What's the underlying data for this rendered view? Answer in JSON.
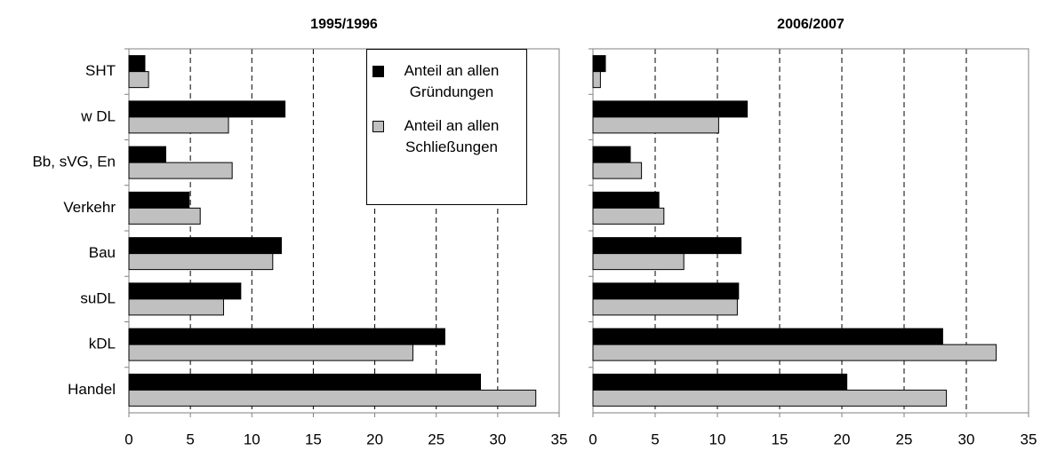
{
  "chart_data": [
    {
      "type": "bar",
      "orientation": "horizontal",
      "title": "1995/1996",
      "categories": [
        "SHT",
        "w DL",
        "Bb, sVG, En",
        "Verkehr",
        "Bau",
        "suDL",
        "kDL",
        "Handel"
      ],
      "series": [
        {
          "name": "Anteil an allen Gründungen",
          "color": "#000000",
          "values": [
            1.3,
            12.7,
            3.0,
            4.9,
            12.4,
            9.1,
            25.7,
            28.6
          ]
        },
        {
          "name": "Anteil an allen Schließungen",
          "color": "#c0c0c0",
          "values": [
            1.6,
            8.1,
            8.4,
            5.8,
            11.7,
            7.7,
            23.1,
            33.1
          ]
        }
      ],
      "xlim": [
        0,
        35
      ],
      "xticks": [
        0,
        5,
        10,
        15,
        20,
        25,
        30,
        35
      ],
      "grid": true,
      "legend": "top-right"
    },
    {
      "type": "bar",
      "orientation": "horizontal",
      "title": "2006/2007",
      "categories": [
        "SHT",
        "w DL",
        "Bb, sVG, En",
        "Verkehr",
        "Bau",
        "suDL",
        "kDL",
        "Handel"
      ],
      "series": [
        {
          "name": "Anteil an allen Gründungen",
          "color": "#000000",
          "values": [
            1.0,
            12.4,
            3.0,
            5.3,
            11.9,
            11.7,
            28.1,
            20.4
          ]
        },
        {
          "name": "Anteil an allen Schließungen",
          "color": "#c0c0c0",
          "values": [
            0.6,
            10.1,
            3.9,
            5.7,
            7.3,
            11.6,
            32.4,
            28.4
          ]
        }
      ],
      "xlim": [
        0,
        35
      ],
      "xticks": [
        0,
        5,
        10,
        15,
        20,
        25,
        30,
        35
      ],
      "grid": true
    }
  ]
}
